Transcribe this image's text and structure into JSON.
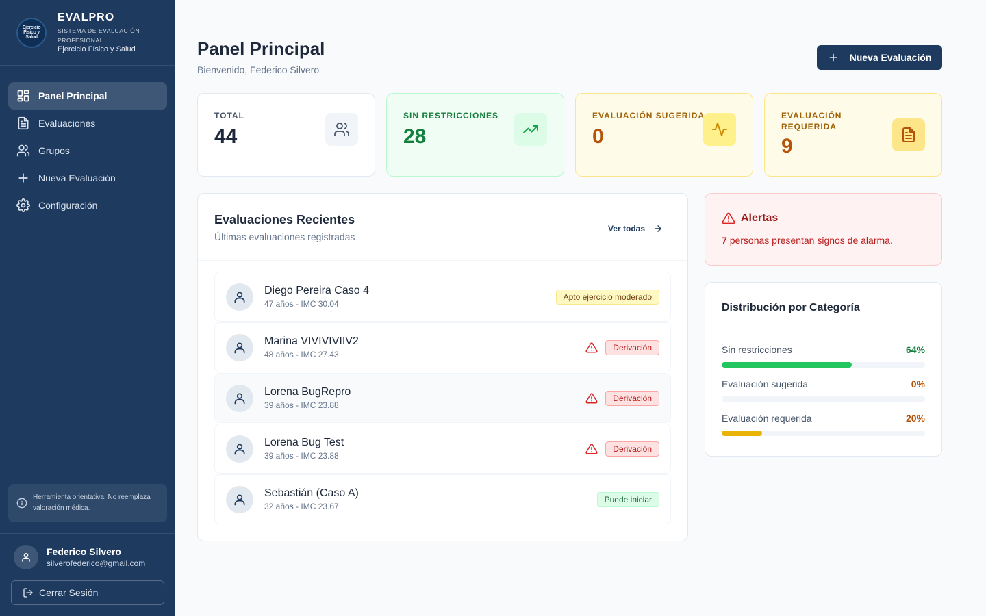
{
  "brand": {
    "title": "EVALPRO",
    "subtitle": "SISTEMA DE EVALUACIÓN PROFESIONAL",
    "subtitle2": "Ejercicio Físico y Salud",
    "logo_text": "Ejercicio Físico y Salud"
  },
  "nav": {
    "items": [
      {
        "label": "Panel Principal",
        "icon": "dashboard-icon",
        "active": true
      },
      {
        "label": "Evaluaciones",
        "icon": "file-icon"
      },
      {
        "label": "Grupos",
        "icon": "users-icon"
      },
      {
        "label": "Nueva Evaluación",
        "icon": "plus-icon"
      },
      {
        "label": "Configuración",
        "icon": "gear-icon"
      }
    ]
  },
  "disclaimer": "Herramienta orientativa. No reemplaza valoración médica.",
  "user": {
    "name": "Federico Silvero",
    "email": "silverofederico@gmail.com",
    "logout_label": "Cerrar Sesión"
  },
  "header": {
    "title": "Panel Principal",
    "subtitle": "Bienvenido, Federico Silvero",
    "new_button": "Nueva Evaluación"
  },
  "stats": [
    {
      "label": "TOTAL",
      "value": "44",
      "icon": "users-icon"
    },
    {
      "label": "SIN RESTRICCIONES",
      "value": "28",
      "icon": "trending-up-icon"
    },
    {
      "label": "EVALUACIÓN SUGERIDA",
      "value": "0",
      "icon": "activity-icon"
    },
    {
      "label": "EVALUACIÓN REQUERIDA",
      "value": "9",
      "icon": "document-icon"
    }
  ],
  "recent": {
    "title": "Evaluaciones Recientes",
    "subtitle": "Últimas evaluaciones registradas",
    "see_all": "Ver todas",
    "rows": [
      {
        "name": "Diego Pereira Caso 4",
        "meta": "47 años - IMC 30.04",
        "badge": "Apto ejercicio moderado",
        "badge_color": "#fef9c3",
        "warning": false
      },
      {
        "name": "Marina VIVIVIVIIV2",
        "meta": "48 años - IMC 27.43",
        "badge": "Derivación",
        "badge_color": "#fee2e2",
        "warning": true
      },
      {
        "name": "Lorena BugRepro",
        "meta": "39 años - IMC 23.88",
        "badge": "Derivación",
        "badge_color": "#fee2e2",
        "warning": true
      },
      {
        "name": "Lorena Bug Test",
        "meta": "39 años - IMC 23.88",
        "badge": "Derivación",
        "badge_color": "#fee2e2",
        "warning": true
      },
      {
        "name": "Sebastián (Caso A)",
        "meta": "32 años - IMC 23.67",
        "badge": "Puede iniciar",
        "badge_color": "#dcfce7",
        "warning": false
      }
    ]
  },
  "alerts": {
    "title": "Alertas",
    "count": "7",
    "text": "personas presentan signos de alarma."
  },
  "distribution": {
    "title": "Distribución por Categoría",
    "items": [
      {
        "label": "Sin restricciones",
        "pct_label": "64%",
        "fraction": 0.64,
        "color": "#22c55e",
        "text_color": "#15803d"
      },
      {
        "label": "Evaluación sugerida",
        "pct_label": "0%",
        "fraction": 0,
        "color": "#eab308",
        "text_color": "#b45309"
      },
      {
        "label": "Evaluación requerida",
        "pct_label": "20%",
        "fraction": 0.2,
        "color": "#eab308",
        "text_color": "#b45309"
      }
    ]
  }
}
